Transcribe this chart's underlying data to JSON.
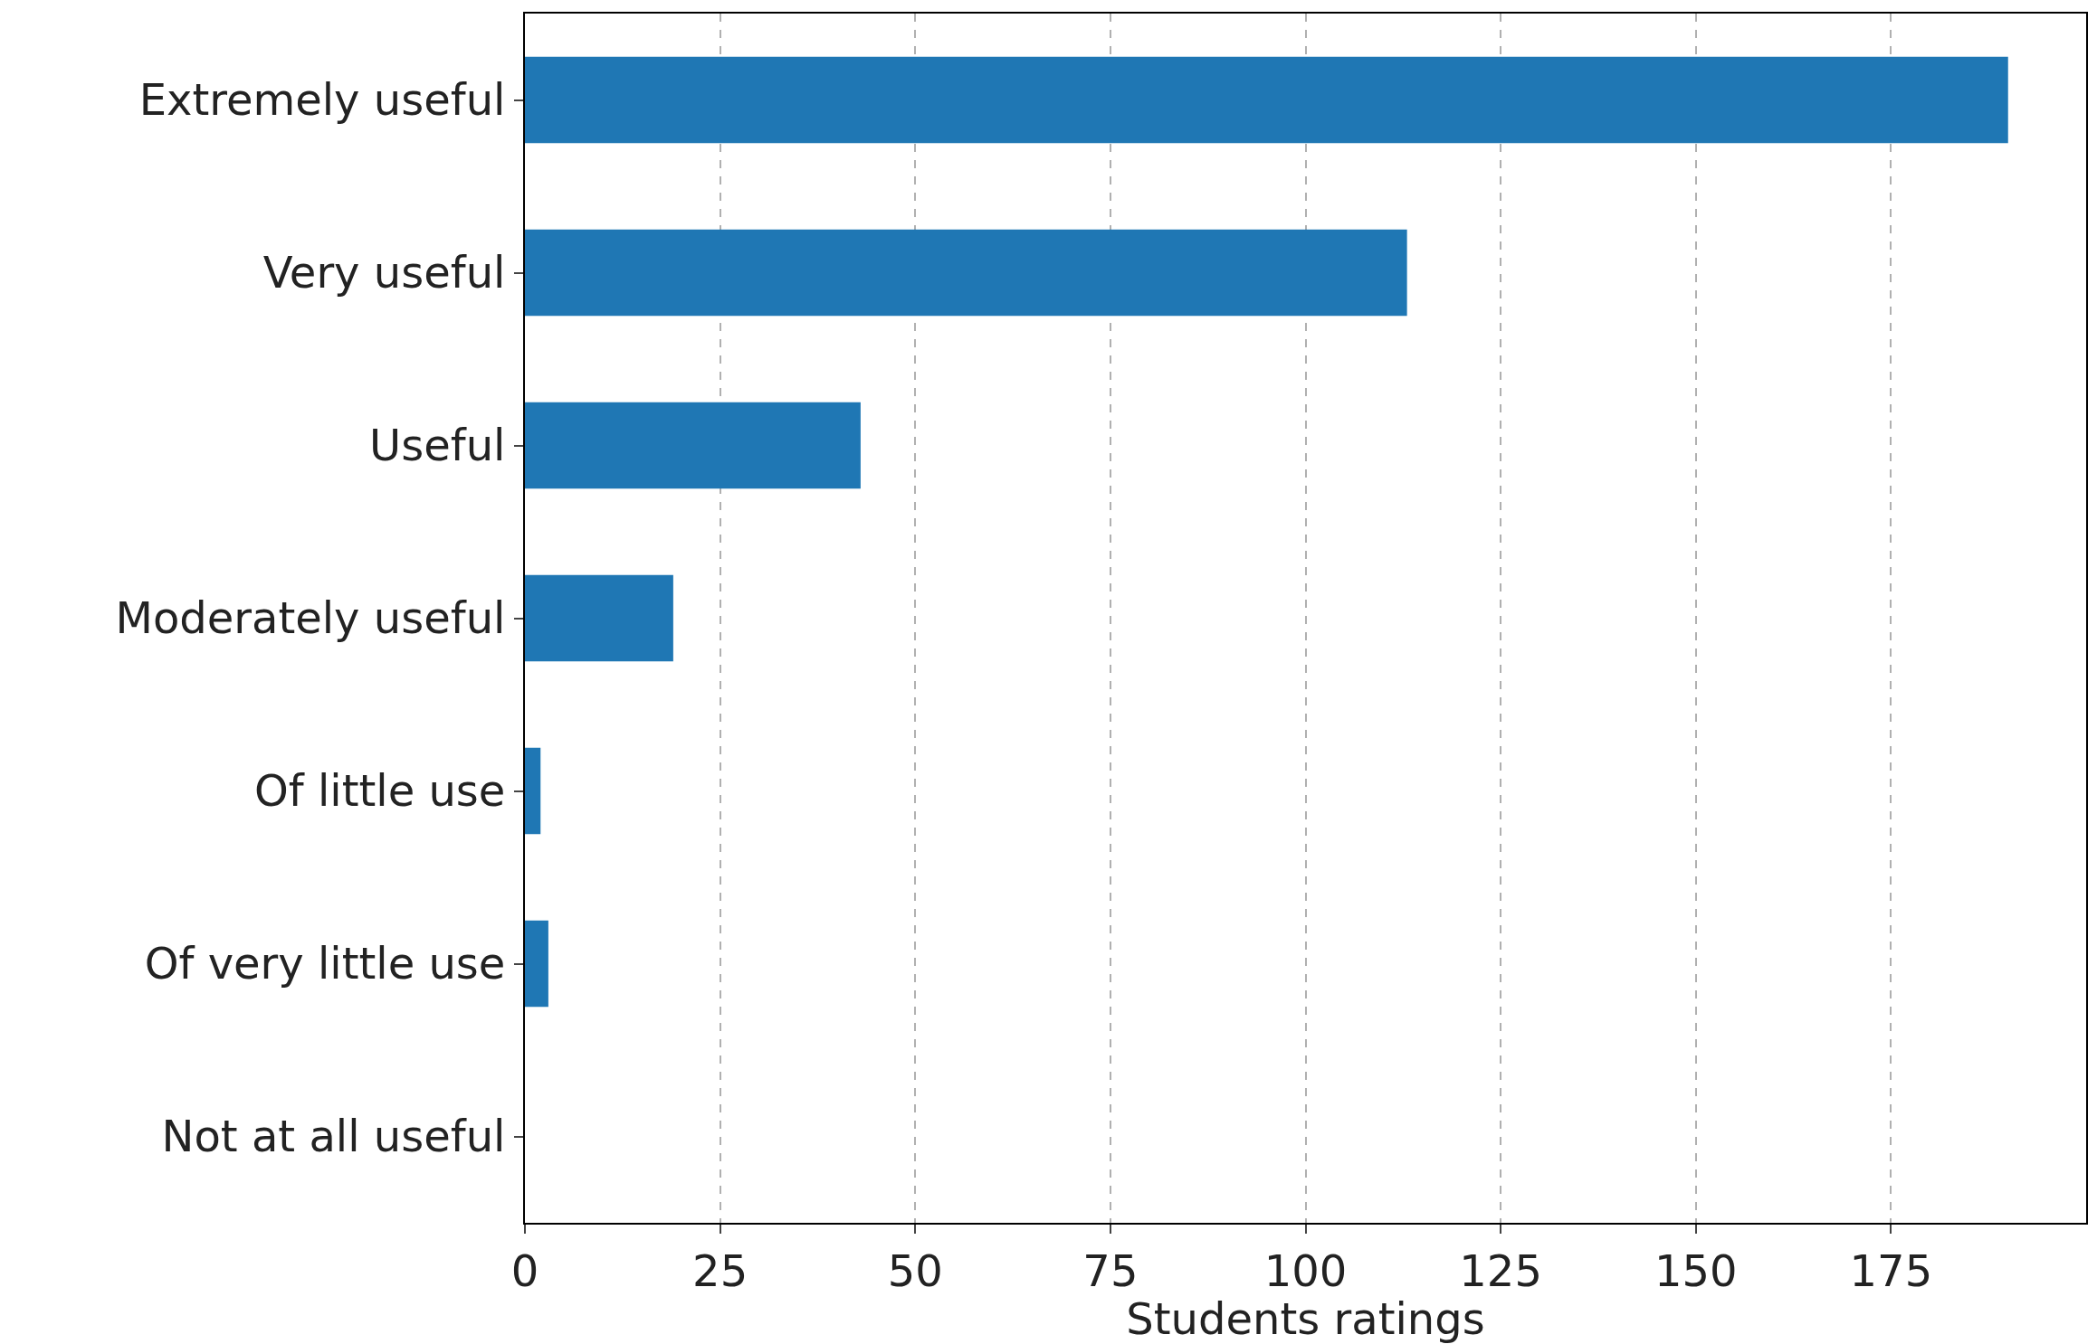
{
  "chart_data": {
    "type": "bar",
    "orientation": "horizontal",
    "xlabel": "Students ratings",
    "categories": [
      "Extremely useful",
      "Very useful",
      "Useful",
      "Moderately useful",
      "Of little use",
      "Of very little use",
      "Not at all useful"
    ],
    "values": [
      190,
      113,
      43,
      19,
      2,
      3,
      0
    ],
    "color": "#1f77b4",
    "xlim": [
      0,
      200
    ],
    "xticks": [
      0,
      25,
      50,
      75,
      100,
      125,
      150,
      175
    ],
    "grid": "x",
    "legend": false
  }
}
